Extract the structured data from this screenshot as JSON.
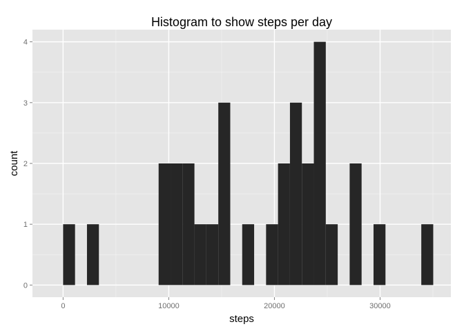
{
  "chart_data": {
    "type": "bar",
    "title": "Histogram to show steps per day",
    "xlabel": "steps",
    "ylabel": "count",
    "xlim": [
      -2900,
      36700
    ],
    "ylim": [
      -0.2,
      4.2
    ],
    "binwidth": 1130,
    "x_ticks": [
      0,
      10000,
      20000,
      30000
    ],
    "x_tick_labels": [
      "0",
      "10000",
      "20000",
      "30000"
    ],
    "y_ticks": [
      0,
      1,
      2,
      3,
      4
    ],
    "y_tick_labels": [
      "0",
      "1",
      "2",
      "3",
      "4"
    ],
    "bins": [
      {
        "start": 0,
        "end": 1130,
        "count": 1
      },
      {
        "start": 1130,
        "end": 2260,
        "count": 0
      },
      {
        "start": 2260,
        "end": 3390,
        "count": 1
      },
      {
        "start": 3390,
        "end": 4520,
        "count": 0
      },
      {
        "start": 4520,
        "end": 5650,
        "count": 0
      },
      {
        "start": 5650,
        "end": 6780,
        "count": 0
      },
      {
        "start": 6780,
        "end": 7910,
        "count": 0
      },
      {
        "start": 7910,
        "end": 9040,
        "count": 0
      },
      {
        "start": 9040,
        "end": 10170,
        "count": 2
      },
      {
        "start": 10170,
        "end": 11300,
        "count": 2
      },
      {
        "start": 11300,
        "end": 12430,
        "count": 2
      },
      {
        "start": 12430,
        "end": 13560,
        "count": 1
      },
      {
        "start": 13560,
        "end": 14690,
        "count": 1
      },
      {
        "start": 14690,
        "end": 15820,
        "count": 3
      },
      {
        "start": 15820,
        "end": 16950,
        "count": 0
      },
      {
        "start": 16950,
        "end": 18080,
        "count": 1
      },
      {
        "start": 18080,
        "end": 19210,
        "count": 0
      },
      {
        "start": 19210,
        "end": 20340,
        "count": 1
      },
      {
        "start": 20340,
        "end": 21470,
        "count": 2
      },
      {
        "start": 21470,
        "end": 22600,
        "count": 3
      },
      {
        "start": 22600,
        "end": 23730,
        "count": 2
      },
      {
        "start": 23730,
        "end": 24860,
        "count": 4
      },
      {
        "start": 24860,
        "end": 25990,
        "count": 1
      },
      {
        "start": 25990,
        "end": 27120,
        "count": 0
      },
      {
        "start": 27120,
        "end": 28250,
        "count": 2
      },
      {
        "start": 28250,
        "end": 29380,
        "count": 0
      },
      {
        "start": 29380,
        "end": 30510,
        "count": 1
      },
      {
        "start": 30510,
        "end": 31640,
        "count": 0
      },
      {
        "start": 31640,
        "end": 32770,
        "count": 0
      },
      {
        "start": 32770,
        "end": 33900,
        "count": 0
      },
      {
        "start": 33900,
        "end": 35030,
        "count": 1
      }
    ],
    "grid": true,
    "legend": "none",
    "colors": {
      "bar": "#262626",
      "panel": "#e5e5e5",
      "grid": "#ffffff"
    }
  }
}
